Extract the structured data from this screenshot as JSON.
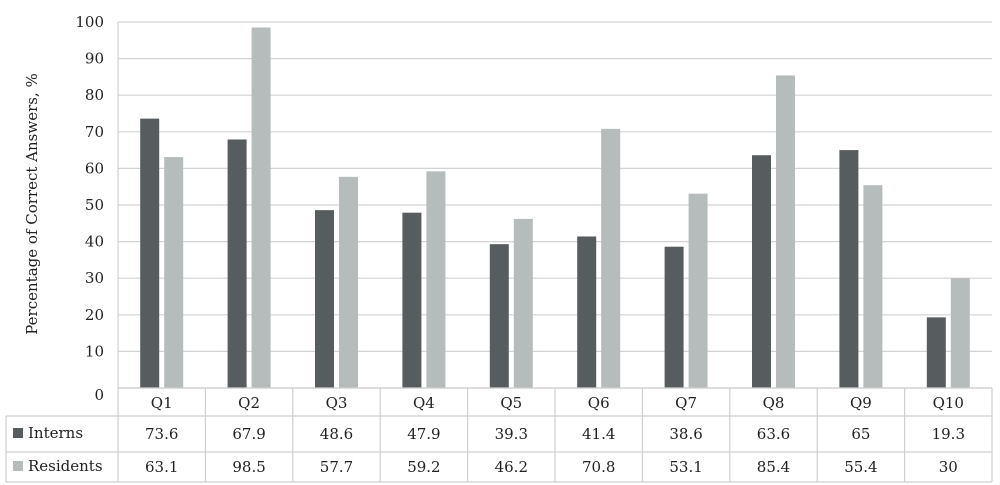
{
  "chart_data": {
    "type": "bar",
    "ylabel": "Percentage of Correct Answers, %",
    "xlabel": "",
    "ylim": [
      0,
      100
    ],
    "yticks": [
      0,
      10,
      20,
      30,
      40,
      50,
      60,
      70,
      80,
      90,
      100
    ],
    "grid": true,
    "legend_placement": "data-table-left",
    "categories": [
      "Q1",
      "Q2",
      "Q3",
      "Q4",
      "Q5",
      "Q6",
      "Q7",
      "Q8",
      "Q9",
      "Q10"
    ],
    "series": [
      {
        "name": "Interns",
        "color": "#575d5f",
        "values": [
          73.6,
          67.9,
          48.6,
          47.9,
          39.3,
          41.4,
          38.6,
          63.6,
          65,
          19.3
        ],
        "labels": [
          "73.6",
          "67.9",
          "48.6",
          "47.9",
          "39.3",
          "41.4",
          "38.6",
          "63.6",
          "65",
          "19.3"
        ]
      },
      {
        "name": "Residents",
        "color": "#b6bcbc",
        "values": [
          63.1,
          98.5,
          57.7,
          59.2,
          46.2,
          70.8,
          53.1,
          85.4,
          55.4,
          30
        ],
        "labels": [
          "63.1",
          "98.5",
          "57.7",
          "59.2",
          "46.2",
          "70.8",
          "53.1",
          "85.4",
          "55.4",
          "30"
        ]
      }
    ]
  }
}
